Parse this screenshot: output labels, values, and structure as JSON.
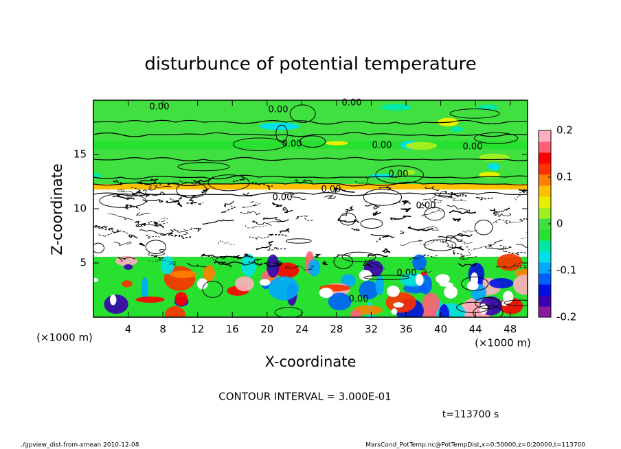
{
  "chart_data": {
    "type": "contour",
    "title": "disturbunce of potential temperature",
    "x_label": "X-coordinate",
    "y_label": "Z-coordinate",
    "x_unit_left": "(×1000 m)",
    "x_unit_right": "(×1000 m)",
    "xlim": [
      0,
      50
    ],
    "ylim": [
      0,
      20
    ],
    "xticks": [
      4,
      8,
      12,
      16,
      20,
      24,
      28,
      32,
      36,
      40,
      44,
      48
    ],
    "yticks": [
      5,
      10,
      15
    ],
    "colorbar_lim": [
      -0.2,
      0.2
    ],
    "colorbar_ticks": [
      -0.2,
      -0.1,
      0,
      0.1,
      0.2
    ],
    "colormap": [
      "#8a1aa0",
      "#3a00b0",
      "#0010e0",
      "#0060ff",
      "#00a8ff",
      "#00e0e8",
      "#00e8a8",
      "#28e030",
      "#40e040",
      "#a0f020",
      "#e8f000",
      "#ffc000",
      "#ff8000",
      "#ff3000",
      "#ff0000",
      "#ff6078",
      "#ffb0c0"
    ],
    "contour_labels": [
      "0.00",
      "0.00",
      "0.00",
      "0.00",
      "0.00",
      "0.00",
      "0.00",
      "0.00",
      "0.00",
      "0.00",
      "0.00",
      "0.00"
    ],
    "annotation": "CONTOUR INTERVAL = 3.000E-01",
    "time_label": "t=113700 s",
    "footer_left": "./gpview_dist-from-xmean  2010-12-08",
    "footer_right": "MarsCond_PotTemp.nc@PotTempDist,x=0:50000,z=0:20000,t=113700"
  }
}
